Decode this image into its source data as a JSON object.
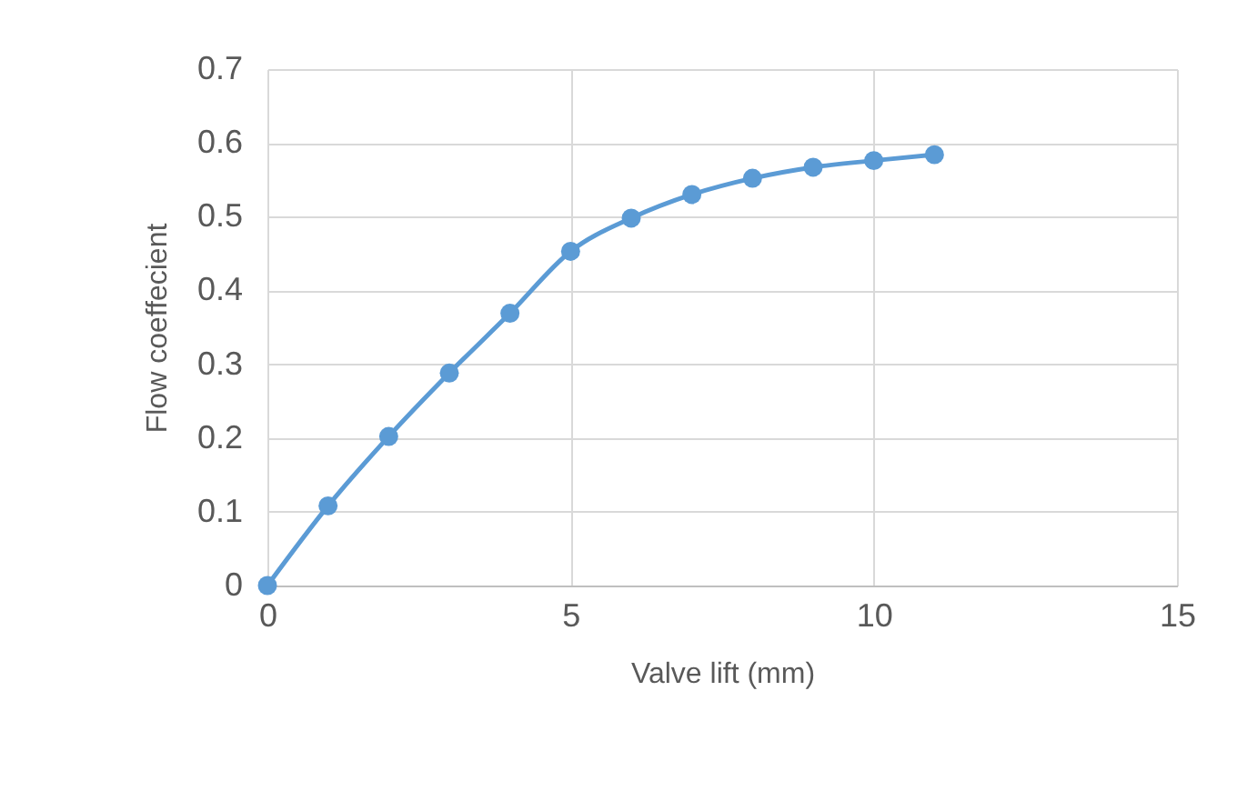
{
  "chart_data": {
    "type": "line",
    "xlabel": "Valve lift (mm)",
    "ylabel": "Flow coeffecient",
    "x": [
      0,
      1,
      2,
      3,
      4,
      5,
      6,
      7,
      8,
      9,
      10,
      11
    ],
    "series": [
      {
        "color": "#5b9bd5",
        "values": [
          0,
          0.108,
          0.202,
          0.288,
          0.369,
          0.453,
          0.498,
          0.53,
          0.552,
          0.567,
          0.576,
          0.584
        ]
      }
    ],
    "xlim": [
      0,
      15
    ],
    "xticks": [
      0,
      5,
      10,
      15
    ],
    "ylim": [
      0,
      0.7
    ],
    "yticks": [
      0,
      0.1,
      0.2,
      0.3,
      0.4,
      0.5,
      0.6,
      0.7
    ],
    "grid": true,
    "marker": "circle",
    "line_style": "solid"
  }
}
